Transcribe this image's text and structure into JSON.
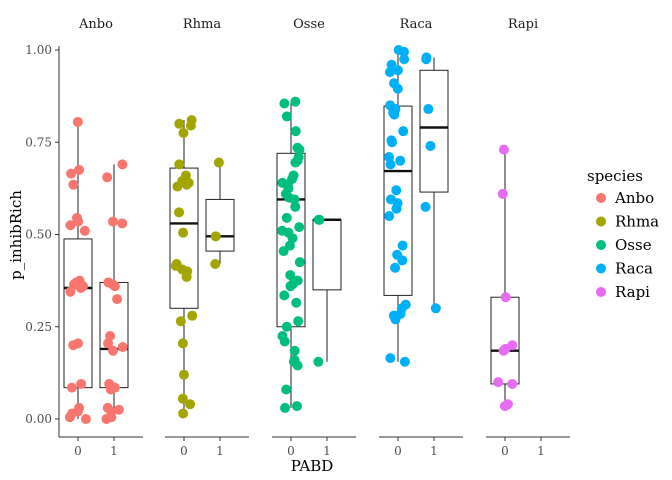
{
  "chart_data": {
    "type": "box",
    "xlabel": "PABD",
    "ylabel": "p_inhibRich",
    "ylim": [
      0,
      1
    ],
    "y_ticks": [
      "0.00",
      "0.25",
      "0.50",
      "0.75",
      "1.00"
    ],
    "x_categories": [
      "0",
      "1"
    ],
    "grid": false,
    "legend": {
      "title": "species",
      "position": "right",
      "entries": [
        {
          "name": "Anbo",
          "color": "#F8766D"
        },
        {
          "name": "Rhma",
          "color": "#A3A500"
        },
        {
          "name": "Osse",
          "color": "#00BF7D"
        },
        {
          "name": "Raca",
          "color": "#00B0F6"
        },
        {
          "name": "Rapi",
          "color": "#E76BF3"
        }
      ]
    },
    "facets": [
      {
        "name": "Anbo",
        "color": "#F8766D",
        "boxes": [
          {
            "x": "0",
            "min": 0.0,
            "q1": 0.085,
            "median": 0.355,
            "q3": 0.488,
            "max": 0.805
          },
          {
            "x": "1",
            "min": 0.0,
            "q1": 0.085,
            "median": 0.19,
            "q3": 0.37,
            "max": 0.69
          }
        ],
        "points": [
          {
            "x": "0",
            "y": [
              0.805,
              0.675,
              0.665,
              0.635,
              0.545,
              0.535,
              0.525,
              0.51,
              0.375,
              0.37,
              0.365,
              0.36,
              0.355,
              0.345,
              0.205,
              0.2,
              0.095,
              0.085,
              0.03,
              0.02,
              0.015,
              0.005,
              0.0
            ]
          },
          {
            "x": "1",
            "y": [
              0.69,
              0.655,
              0.535,
              0.53,
              0.37,
              0.365,
              0.36,
              0.325,
              0.225,
              0.205,
              0.195,
              0.185,
              0.095,
              0.085,
              0.08,
              0.03,
              0.025,
              0.02,
              0.005,
              0.0
            ]
          }
        ]
      },
      {
        "name": "Rhma",
        "color": "#A3A500",
        "boxes": [
          {
            "x": "0",
            "min": 0.015,
            "q1": 0.3,
            "median": 0.53,
            "q3": 0.68,
            "max": 0.81
          },
          {
            "x": "1",
            "min": 0.42,
            "q1": 0.455,
            "median": 0.495,
            "q3": 0.595,
            "max": 0.695
          }
        ],
        "points": [
          {
            "x": "0",
            "y": [
              0.81,
              0.8,
              0.795,
              0.775,
              0.69,
              0.66,
              0.645,
              0.64,
              0.635,
              0.63,
              0.56,
              0.505,
              0.42,
              0.415,
              0.405,
              0.4,
              0.385,
              0.28,
              0.265,
              0.205,
              0.12,
              0.055,
              0.04,
              0.015
            ]
          },
          {
            "x": "1",
            "y": [
              0.695,
              0.495,
              0.42
            ]
          }
        ]
      },
      {
        "name": "Osse",
        "color": "#00BF7D",
        "boxes": [
          {
            "x": "0",
            "min": 0.03,
            "q1": 0.25,
            "median": 0.595,
            "q3": 0.72,
            "max": 0.86
          },
          {
            "x": "1",
            "min": 0.155,
            "q1": 0.35,
            "median": 0.54,
            "q3": 0.54,
            "max": 0.54
          }
        ],
        "points": [
          {
            "x": "0",
            "y": [
              0.86,
              0.855,
              0.82,
              0.78,
              0.735,
              0.73,
              0.71,
              0.7,
              0.695,
              0.66,
              0.65,
              0.64,
              0.635,
              0.625,
              0.61,
              0.6,
              0.595,
              0.575,
              0.545,
              0.52,
              0.51,
              0.505,
              0.49,
              0.47,
              0.455,
              0.425,
              0.39,
              0.375,
              0.365,
              0.36,
              0.335,
              0.315,
              0.265,
              0.25,
              0.225,
              0.21,
              0.185,
              0.16,
              0.155,
              0.145,
              0.08,
              0.035,
              0.03
            ]
          },
          {
            "x": "1",
            "y": [
              0.54,
              0.54,
              0.155
            ]
          }
        ]
      },
      {
        "name": "Raca",
        "color": "#00B0F6",
        "boxes": [
          {
            "x": "0",
            "min": 0.155,
            "q1": 0.335,
            "median": 0.672,
            "q3": 0.848,
            "max": 1.0
          },
          {
            "x": "1",
            "min": 0.3,
            "q1": 0.615,
            "median": 0.79,
            "q3": 0.945,
            "max": 0.98
          }
        ],
        "points": [
          {
            "x": "0",
            "y": [
              1.0,
              0.995,
              0.975,
              0.96,
              0.945,
              0.94,
              0.91,
              0.895,
              0.85,
              0.84,
              0.83,
              0.825,
              0.78,
              0.755,
              0.75,
              0.71,
              0.7,
              0.69,
              0.62,
              0.595,
              0.585,
              0.57,
              0.55,
              0.47,
              0.445,
              0.43,
              0.41,
              0.31,
              0.3,
              0.285,
              0.28,
              0.27,
              0.165,
              0.155
            ]
          },
          {
            "x": "1",
            "y": [
              0.98,
              0.975,
              0.84,
              0.74,
              0.575,
              0.3
            ]
          }
        ]
      },
      {
        "name": "Rapi",
        "color": "#E76BF3",
        "boxes": [
          {
            "x": "0",
            "min": 0.035,
            "q1": 0.095,
            "median": 0.185,
            "q3": 0.33,
            "max": 0.73
          }
        ],
        "points": [
          {
            "x": "0",
            "y": [
              0.73,
              0.61,
              0.33,
              0.2,
              0.19,
              0.185,
              0.1,
              0.095,
              0.04,
              0.035
            ]
          }
        ]
      }
    ]
  }
}
